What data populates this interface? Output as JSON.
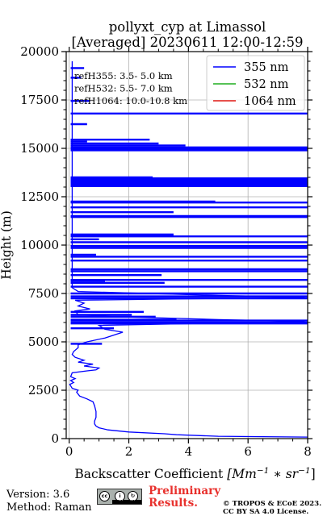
{
  "chart_data": {
    "type": "line",
    "orientation": "vertical-profile",
    "title": "pollyxt_cyp at Limassol",
    "subtitle": "[Averaged] 20230611 12:00-12:59",
    "xlabel_text": "Backscatter Coefficient ",
    "xlabel_math": "[Mm",
    "xlabel_sup1": "−1",
    "xlabel_mid": " ∗ sr",
    "xlabel_sup2": "−1",
    "xlabel_end": "]",
    "ylabel": "Height (m)",
    "xlim": [
      -0.1,
      8
    ],
    "ylim": [
      0,
      20000
    ],
    "x_ticks": [
      0,
      2,
      4,
      6,
      8
    ],
    "x_tick_labels": [
      "0",
      "2",
      "4",
      "6",
      "8"
    ],
    "y_ticks": [
      0,
      2500,
      5000,
      7500,
      10000,
      12500,
      15000,
      17500,
      20000
    ],
    "y_tick_labels": [
      "0",
      "2500",
      "5000",
      "7500",
      "10000",
      "12500",
      "15000",
      "17500",
      "20000"
    ],
    "grid": true,
    "legend_position": "top-right",
    "reference_annotations": [
      "refH355:  3.5- 5.0 km",
      "refH532:  5.5- 7.0 km",
      "refH1064: 10.0-10.8 km"
    ],
    "series": [
      {
        "name": "355 nm",
        "color": "#0000ff",
        "profile": [
          [
            8.0,
            80
          ],
          [
            5.0,
            120
          ],
          [
            3.6,
            200
          ],
          [
            3.2,
            250
          ],
          [
            2.0,
            340
          ],
          [
            1.3,
            450
          ],
          [
            1.0,
            560
          ],
          [
            0.9,
            650
          ],
          [
            0.85,
            760
          ],
          [
            0.85,
            900
          ],
          [
            0.9,
            1100
          ],
          [
            0.9,
            1400
          ],
          [
            0.85,
            1700
          ],
          [
            0.8,
            1900
          ],
          [
            0.6,
            2050
          ],
          [
            0.35,
            2200
          ],
          [
            0.25,
            2400
          ],
          [
            0.3,
            2500
          ],
          [
            0.1,
            2600
          ],
          [
            0.02,
            2800
          ],
          [
            0.15,
            2900
          ],
          [
            0.05,
            3000
          ],
          [
            0.2,
            3100
          ],
          [
            0.05,
            3200
          ],
          [
            0.1,
            3400
          ],
          [
            0.6,
            3500
          ],
          [
            0.9,
            3550
          ],
          [
            1.0,
            3650
          ],
          [
            0.5,
            3750
          ],
          [
            0.8,
            3850
          ],
          [
            0.3,
            3950
          ],
          [
            0.5,
            4050
          ],
          [
            0.2,
            4200
          ],
          [
            0.1,
            4350
          ],
          [
            0.15,
            4500
          ],
          [
            0.3,
            4700
          ],
          [
            0.3,
            4850
          ],
          [
            0.6,
            5000
          ],
          [
            1.2,
            5200
          ],
          [
            1.6,
            5400
          ],
          [
            1.8,
            5500
          ],
          [
            1.2,
            5650
          ],
          [
            1.0,
            5850
          ],
          [
            4.3,
            5950
          ],
          [
            7.9,
            6050
          ],
          [
            5.0,
            6150
          ],
          [
            2.8,
            6250
          ],
          [
            1.5,
            6300
          ],
          [
            0.3,
            6400
          ],
          [
            0.2,
            6600
          ],
          [
            0.7,
            6700
          ],
          [
            0.3,
            6850
          ],
          [
            0.5,
            7000
          ],
          [
            0.2,
            7150
          ],
          [
            7.9,
            7300
          ],
          [
            5.0,
            7400
          ],
          [
            0.3,
            7600
          ],
          [
            0.1,
            7800
          ],
          [
            0.1,
            8050
          ],
          [
            0.1,
            8250
          ],
          [
            0.1,
            8500
          ],
          [
            0.1,
            8650
          ],
          [
            0.1,
            8800
          ],
          [
            0.1,
            9100
          ],
          [
            0.1,
            9350
          ],
          [
            0.1,
            9600
          ],
          [
            0.1,
            9800
          ],
          [
            0.1,
            10050
          ],
          [
            0.1,
            10250
          ],
          [
            0.1,
            10500
          ],
          [
            0.1,
            10800
          ],
          [
            0.1,
            11000
          ],
          [
            0.1,
            11200
          ],
          [
            0.1,
            11450
          ],
          [
            0.1,
            11550
          ],
          [
            0.1,
            11800
          ],
          [
            0.1,
            12000
          ],
          [
            0.1,
            12150
          ],
          [
            0.1,
            12350
          ],
          [
            0.1,
            12500
          ],
          [
            0.1,
            12700
          ],
          [
            0.1,
            12800
          ],
          [
            0.1,
            13000
          ],
          [
            0.1,
            13100
          ],
          [
            0.1,
            13250
          ],
          [
            0.1,
            13400
          ],
          [
            0.1,
            13600
          ],
          [
            0.1,
            13800
          ],
          [
            0.1,
            14200
          ],
          [
            0.1,
            14600
          ],
          [
            0.1,
            14800
          ],
          [
            0.1,
            14950
          ],
          [
            0.1,
            15050
          ],
          [
            0.1,
            15200
          ],
          [
            0.1,
            15400
          ],
          [
            0.1,
            15600
          ],
          [
            0.1,
            15800
          ],
          [
            0.1,
            16100
          ],
          [
            0.1,
            16300
          ],
          [
            0.1,
            16600
          ],
          [
            0.1,
            16850
          ],
          [
            0.1,
            17100
          ],
          [
            0.1,
            17600
          ],
          [
            0.1,
            18500
          ],
          [
            0.1,
            19500
          ]
        ],
        "spikes": [
          [
            7500,
            8
          ],
          [
            7350,
            8
          ],
          [
            7250,
            8
          ],
          [
            6100,
            8
          ],
          [
            6000,
            8
          ],
          [
            5950,
            8
          ],
          [
            7850,
            8
          ],
          [
            8200,
            8
          ],
          [
            8650,
            8
          ],
          [
            8750,
            8
          ],
          [
            9200,
            8
          ],
          [
            9400,
            8
          ],
          [
            9850,
            8
          ],
          [
            9950,
            8
          ],
          [
            10150,
            8
          ],
          [
            10300,
            1.0
          ],
          [
            10450,
            8
          ],
          [
            11450,
            8
          ],
          [
            11500,
            8
          ],
          [
            11950,
            8
          ],
          [
            12200,
            8
          ],
          [
            12250,
            4.9
          ],
          [
            13050,
            8
          ],
          [
            13100,
            8
          ],
          [
            13150,
            8
          ],
          [
            13200,
            8
          ],
          [
            13250,
            8
          ],
          [
            13300,
            8
          ],
          [
            13350,
            8
          ],
          [
            13400,
            8
          ],
          [
            13450,
            8
          ],
          [
            14900,
            8
          ],
          [
            14950,
            8
          ],
          [
            15000,
            8
          ],
          [
            15050,
            8
          ],
          [
            15150,
            3.9
          ],
          [
            15250,
            3.0
          ],
          [
            15350,
            0.6
          ],
          [
            15450,
            2.7
          ],
          [
            16800,
            8
          ],
          [
            17450,
            0.7
          ],
          [
            18650,
            0.4
          ],
          [
            19150,
            0.5
          ],
          [
            16250,
            0.6
          ],
          [
            13500,
            2.8
          ],
          [
            9500,
            0.9
          ],
          [
            8150,
            1.2
          ],
          [
            8050,
            3.2
          ],
          [
            8450,
            3.1
          ],
          [
            10550,
            3.5
          ],
          [
            11700,
            3.5
          ],
          [
            6550,
            2.5
          ],
          [
            6400,
            2.1
          ],
          [
            6300,
            2.9
          ],
          [
            6150,
            3.6
          ],
          [
            5700,
            1.5
          ],
          [
            4900,
            1.1
          ]
        ]
      },
      {
        "name": "532 nm",
        "color": "#1fae1f",
        "profile": [],
        "spikes": []
      },
      {
        "name": "1064 nm",
        "color": "#e11a14",
        "profile": [],
        "spikes": []
      }
    ]
  },
  "footer": {
    "version": "Version: 3.6",
    "method": "Method: Raman",
    "preliminary_line1": "Preliminary",
    "preliminary_line2": "Results.",
    "credit_line1": "© TROPOS & ECoE 2023.",
    "credit_line2": "CC BY SA 4.0 License."
  },
  "license_badge": {
    "cc": "cc",
    "by": "BY",
    "sa": "SA"
  }
}
